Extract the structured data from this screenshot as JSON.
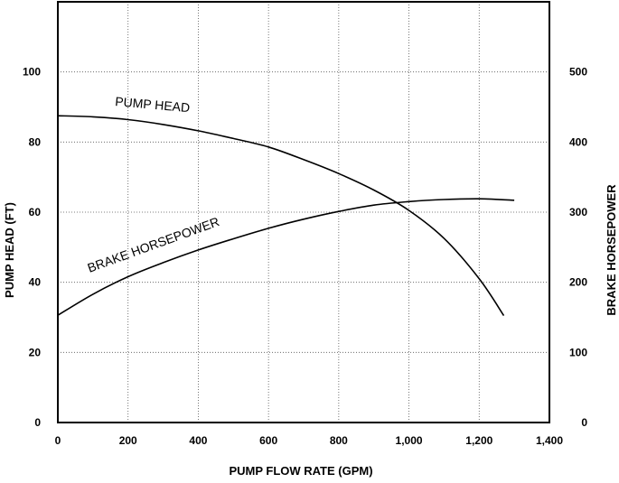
{
  "chart_data": {
    "type": "line",
    "title": "",
    "xlabel": "PUMP FLOW RATE (GPM)",
    "ylabel": "PUMP HEAD (FT)",
    "y2label": "BRAKE HORSEPOWER",
    "xlim": [
      0,
      1400
    ],
    "ylim": [
      0,
      120
    ],
    "y2lim": [
      0,
      600
    ],
    "x_ticks": [
      0,
      200,
      400,
      600,
      800,
      1000,
      1200,
      1400
    ],
    "x_tick_labels": [
      "0",
      "200",
      "400",
      "600",
      "800",
      "1,000",
      "1,200",
      "1,400"
    ],
    "y_ticks": [
      0,
      20,
      40,
      60,
      80,
      100
    ],
    "y_tick_labels": [
      "0",
      "20",
      "40",
      "60",
      "80",
      "100"
    ],
    "y2_ticks": [
      0,
      100,
      200,
      300,
      400,
      500
    ],
    "y2_tick_labels": [
      "0",
      "100",
      "200",
      "300",
      "400",
      "500"
    ],
    "grid": "dotted",
    "series": [
      {
        "name": "PUMP HEAD",
        "axis": "left",
        "x": [
          0,
          100,
          200,
          300,
          400,
          500,
          600,
          700,
          800,
          900,
          1000,
          1100,
          1200,
          1270
        ],
        "y": [
          87.5,
          87.2,
          86.4,
          85.0,
          83.2,
          81.0,
          78.6,
          75.0,
          71.0,
          66.3,
          60.5,
          52.5,
          41.0,
          30.5
        ]
      },
      {
        "name": "BRAKE HORSEPOWER",
        "axis": "right",
        "x": [
          0,
          100,
          200,
          300,
          400,
          500,
          600,
          700,
          800,
          900,
          1000,
          1100,
          1200,
          1300
        ],
        "y": [
          153,
          183,
          208,
          228,
          246,
          262,
          277,
          290,
          301,
          310,
          315,
          318,
          319,
          317
        ]
      }
    ]
  }
}
